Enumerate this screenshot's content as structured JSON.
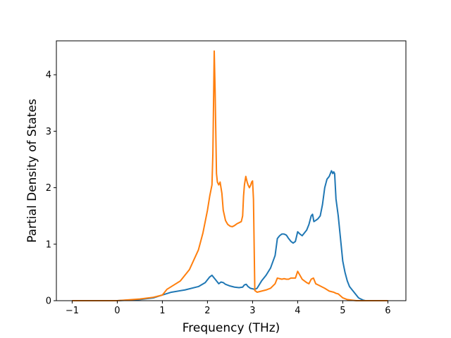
{
  "chart_data": {
    "type": "line",
    "title": "",
    "xlabel": "Frequency (THz)",
    "ylabel": "Partial Density of States",
    "xlim": [
      -1.35,
      6.4
    ],
    "ylim": [
      0,
      4.6
    ],
    "xticks": [
      -1,
      0,
      1,
      2,
      3,
      4,
      5,
      6
    ],
    "yticks": [
      0,
      1,
      2,
      3,
      4
    ],
    "grid": false,
    "legend": "none",
    "series": [
      {
        "color": "#1f77b4",
        "x": [
          -1.0,
          0.0,
          0.5,
          0.8,
          1.0,
          1.2,
          1.5,
          1.8,
          1.95,
          2.05,
          2.1,
          2.2,
          2.25,
          2.3,
          2.35,
          2.4,
          2.5,
          2.6,
          2.7,
          2.78,
          2.82,
          2.86,
          2.9,
          2.95,
          3.0,
          3.05,
          3.1,
          3.2,
          3.3,
          3.4,
          3.5,
          3.55,
          3.6,
          3.65,
          3.7,
          3.75,
          3.8,
          3.85,
          3.9,
          3.95,
          4.0,
          4.05,
          4.1,
          4.15,
          4.2,
          4.25,
          4.3,
          4.33,
          4.36,
          4.4,
          4.45,
          4.5,
          4.55,
          4.6,
          4.65,
          4.7,
          4.75,
          4.78,
          4.8,
          4.82,
          4.85,
          4.9,
          4.95,
          5.0,
          5.05,
          5.1,
          5.15,
          5.2,
          5.3,
          5.35,
          5.4,
          5.45,
          5.5,
          6.0
        ],
        "y": [
          0.0,
          0.0,
          0.02,
          0.05,
          0.1,
          0.15,
          0.19,
          0.25,
          0.32,
          0.42,
          0.45,
          0.35,
          0.3,
          0.33,
          0.32,
          0.29,
          0.26,
          0.24,
          0.23,
          0.24,
          0.28,
          0.29,
          0.25,
          0.22,
          0.21,
          0.2,
          0.22,
          0.35,
          0.45,
          0.58,
          0.8,
          1.1,
          1.15,
          1.18,
          1.18,
          1.16,
          1.1,
          1.05,
          1.02,
          1.05,
          1.22,
          1.18,
          1.15,
          1.2,
          1.25,
          1.35,
          1.5,
          1.53,
          1.4,
          1.42,
          1.45,
          1.5,
          1.7,
          2.0,
          2.15,
          2.2,
          2.3,
          2.25,
          2.28,
          2.25,
          1.8,
          1.5,
          1.1,
          0.7,
          0.5,
          0.35,
          0.25,
          0.2,
          0.1,
          0.05,
          0.03,
          0.01,
          0.0,
          0.0
        ]
      },
      {
        "color": "#ff7f0e",
        "x": [
          -1.0,
          0.0,
          0.5,
          0.8,
          1.0,
          1.05,
          1.1,
          1.2,
          1.4,
          1.6,
          1.8,
          1.9,
          2.0,
          2.05,
          2.1,
          2.12,
          2.15,
          2.17,
          2.2,
          2.22,
          2.25,
          2.28,
          2.3,
          2.32,
          2.35,
          2.4,
          2.45,
          2.5,
          2.55,
          2.6,
          2.65,
          2.7,
          2.75,
          2.78,
          2.8,
          2.82,
          2.85,
          2.88,
          2.9,
          2.93,
          2.96,
          2.98,
          3.0,
          3.02,
          3.05,
          3.1,
          3.2,
          3.3,
          3.4,
          3.5,
          3.55,
          3.6,
          3.65,
          3.7,
          3.75,
          3.8,
          3.85,
          3.9,
          3.95,
          4.0,
          4.05,
          4.1,
          4.15,
          4.2,
          4.25,
          4.3,
          4.35,
          4.4,
          4.45,
          4.5,
          4.6,
          4.7,
          4.8,
          4.85,
          4.9,
          5.0,
          5.1,
          5.2,
          5.3,
          5.4,
          5.5,
          6.0
        ],
        "y": [
          0.0,
          0.0,
          0.03,
          0.06,
          0.1,
          0.15,
          0.2,
          0.25,
          0.35,
          0.55,
          0.9,
          1.2,
          1.6,
          1.85,
          2.05,
          2.6,
          4.42,
          3.7,
          2.25,
          2.1,
          2.05,
          2.1,
          2.0,
          1.9,
          1.6,
          1.42,
          1.35,
          1.32,
          1.31,
          1.33,
          1.36,
          1.38,
          1.4,
          1.5,
          1.85,
          2.05,
          2.2,
          2.1,
          2.05,
          2.0,
          2.05,
          2.1,
          2.12,
          1.8,
          0.18,
          0.15,
          0.17,
          0.19,
          0.22,
          0.3,
          0.4,
          0.39,
          0.38,
          0.39,
          0.38,
          0.38,
          0.4,
          0.4,
          0.4,
          0.52,
          0.45,
          0.38,
          0.35,
          0.32,
          0.3,
          0.38,
          0.4,
          0.3,
          0.28,
          0.26,
          0.22,
          0.17,
          0.15,
          0.13,
          0.12,
          0.05,
          0.02,
          0.01,
          0.0,
          0.0,
          0.0,
          0.0
        ]
      }
    ]
  }
}
